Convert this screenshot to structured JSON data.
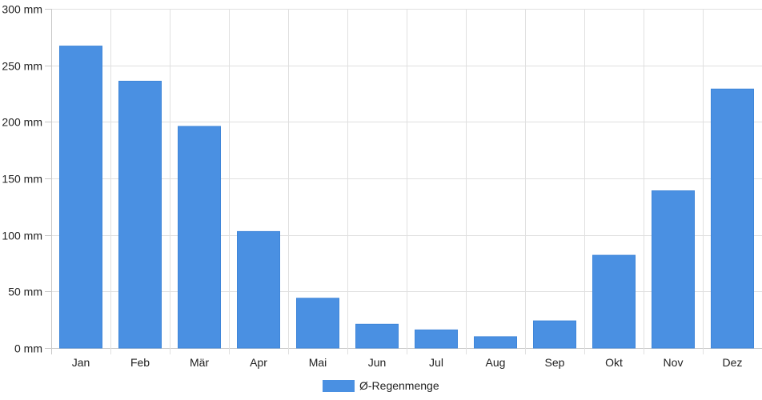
{
  "chart_data": {
    "type": "bar",
    "title": "",
    "xlabel": "",
    "ylabel": "",
    "categories": [
      "Jan",
      "Feb",
      "Mär",
      "Apr",
      "Mai",
      "Jun",
      "Jul",
      "Aug",
      "Sep",
      "Okt",
      "Nov",
      "Dez"
    ],
    "series": [
      {
        "name": "Ø-Regenmenge",
        "color": "#4a90e2",
        "values": [
          267,
          236,
          196,
          103,
          44,
          21,
          16,
          10,
          24,
          82,
          139,
          229
        ]
      }
    ],
    "ylim": [
      0,
      300
    ],
    "yticks": [
      0,
      50,
      100,
      150,
      200,
      250,
      300
    ],
    "y_unit": "mm",
    "ytick_labels": [
      "0 mm",
      "50 mm",
      "100 mm",
      "150 mm",
      "200 mm",
      "250 mm",
      "300 mm"
    ],
    "grid": true,
    "legend": "bottom"
  }
}
